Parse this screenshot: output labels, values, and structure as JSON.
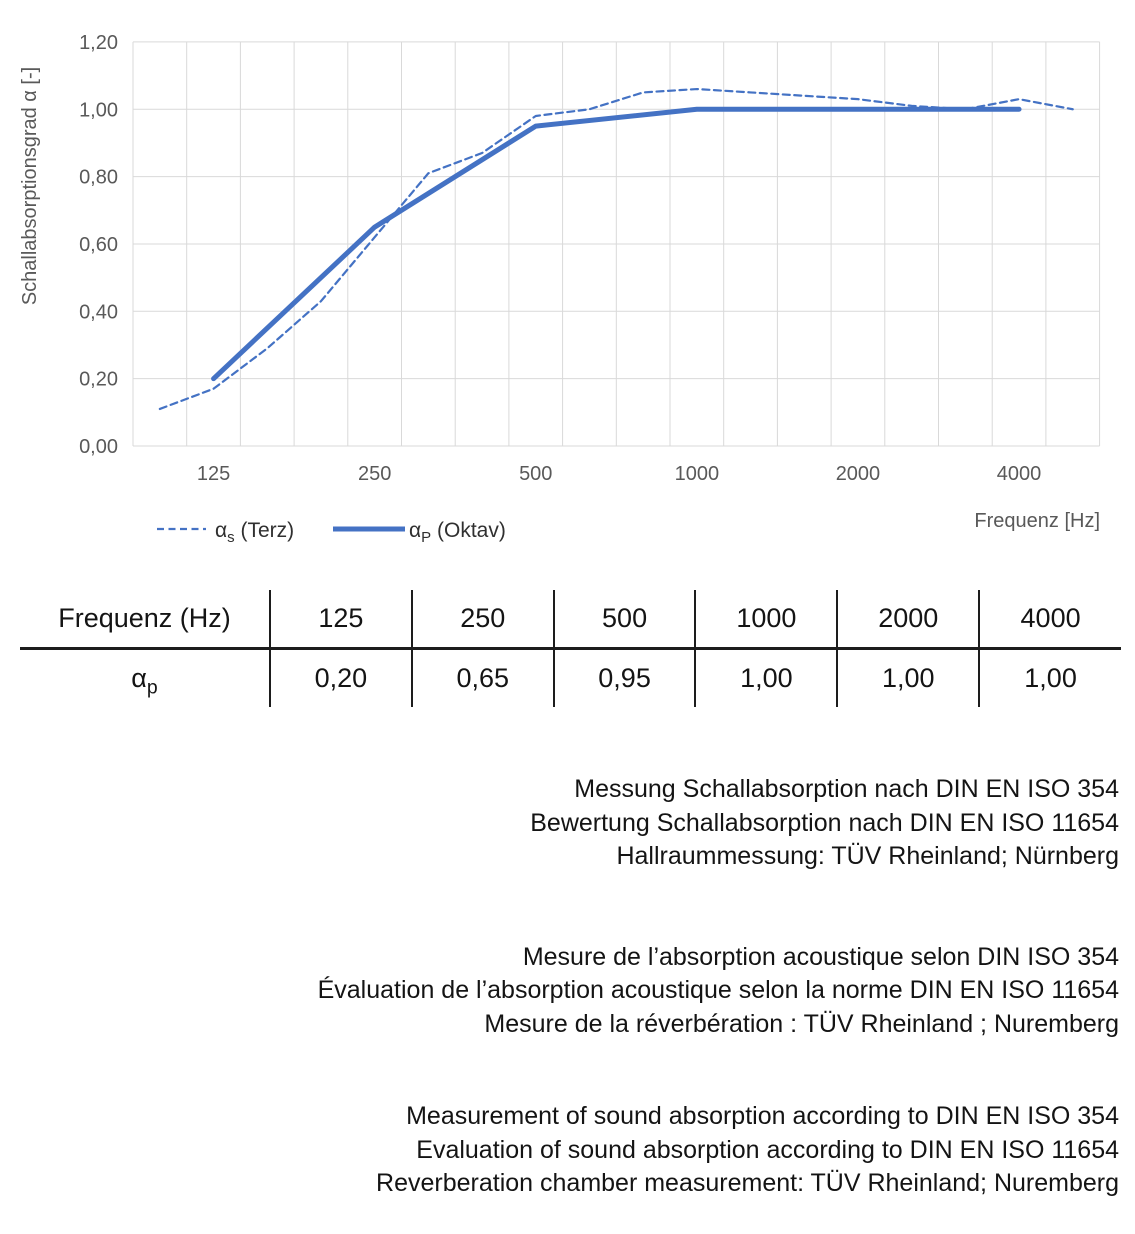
{
  "chart": {
    "y_axis_title": "Schallabsorptionsgrad α [-]",
    "x_axis_title": "Frequenz [Hz]",
    "line_color": "#4472C4",
    "grid_color": "#D9D9D9",
    "tick_color": "#595959",
    "y_ticks": [
      {
        "value": 0.0,
        "label": "0,00"
      },
      {
        "value": 0.2,
        "label": "0,20"
      },
      {
        "value": 0.4,
        "label": "0,40"
      },
      {
        "value": 0.6,
        "label": "0,60"
      },
      {
        "value": 0.8,
        "label": "0,80"
      },
      {
        "value": 1.0,
        "label": "1,00"
      },
      {
        "value": 1.2,
        "label": "1,20"
      }
    ],
    "x_ticks": [
      {
        "freq": 125,
        "label": "125"
      },
      {
        "freq": 250,
        "label": "250"
      },
      {
        "freq": 500,
        "label": "500"
      },
      {
        "freq": 1000,
        "label": "1000"
      },
      {
        "freq": 2000,
        "label": "2000"
      },
      {
        "freq": 4000,
        "label": "4000"
      }
    ],
    "legend": {
      "series1": {
        "symbol": "α",
        "sub": "s",
        "rest": " (Terz)"
      },
      "series2": {
        "symbol": "α",
        "sub": "P",
        "rest": " (Oktav)"
      }
    }
  },
  "chart_data": {
    "type": "line",
    "title": "",
    "xlabel": "Frequenz [Hz]",
    "ylabel": "Schallabsorptionsgrad α [-]",
    "x_scale": "logarithmic (third-octave categories)",
    "ylim": [
      0,
      1.2
    ],
    "y_tick_step": 0.2,
    "grid": true,
    "legend_position": "bottom-left",
    "categories": [
      100,
      125,
      160,
      200,
      250,
      315,
      400,
      500,
      630,
      800,
      1000,
      1250,
      1600,
      2000,
      2500,
      3150,
      4000,
      5000
    ],
    "series": [
      {
        "name": "αs (Terz)",
        "style": "dashed",
        "values": [
          0.11,
          0.17,
          0.29,
          0.43,
          0.62,
          0.81,
          0.87,
          0.98,
          1.0,
          1.05,
          1.06,
          1.05,
          1.04,
          1.03,
          1.01,
          1.0,
          1.03,
          1.0
        ]
      },
      {
        "name": "αP (Oktav)",
        "style": "solid",
        "x": [
          125,
          250,
          500,
          1000,
          2000,
          4000
        ],
        "values": [
          0.2,
          0.65,
          0.95,
          1.0,
          1.0,
          1.0
        ]
      }
    ]
  },
  "table": {
    "header_label": "Frequenz (Hz)",
    "row_label": {
      "symbol": "α",
      "sub": "p"
    },
    "frequencies": [
      "125",
      "250",
      "500",
      "1000",
      "2000",
      "4000"
    ],
    "values": [
      "0,20",
      "0,65",
      "0,95",
      "1,00",
      "1,00",
      "1,00"
    ]
  },
  "notes": {
    "de": {
      "lines": [
        "Messung Schallabsorption nach DIN EN ISO 354",
        "Bewertung Schallabsorption nach DIN EN ISO 11654",
        "Hallraummessung: TÜV Rheinland; Nürnberg"
      ]
    },
    "fr": {
      "lines": [
        "Mesure de l’absorption acoustique selon DIN ISO 354",
        "Évaluation de l’absorption acoustique selon la norme DIN EN ISO 11654",
        "Mesure de la réverbération : TÜV Rheinland ; Nuremberg"
      ]
    },
    "en": {
      "lines": [
        "Measurement of sound absorption according to DIN EN ISO 354",
        "Evaluation of sound absorption according to DIN EN ISO 11654",
        "Reverberation chamber measurement: TÜV Rheinland; Nuremberg"
      ]
    }
  }
}
